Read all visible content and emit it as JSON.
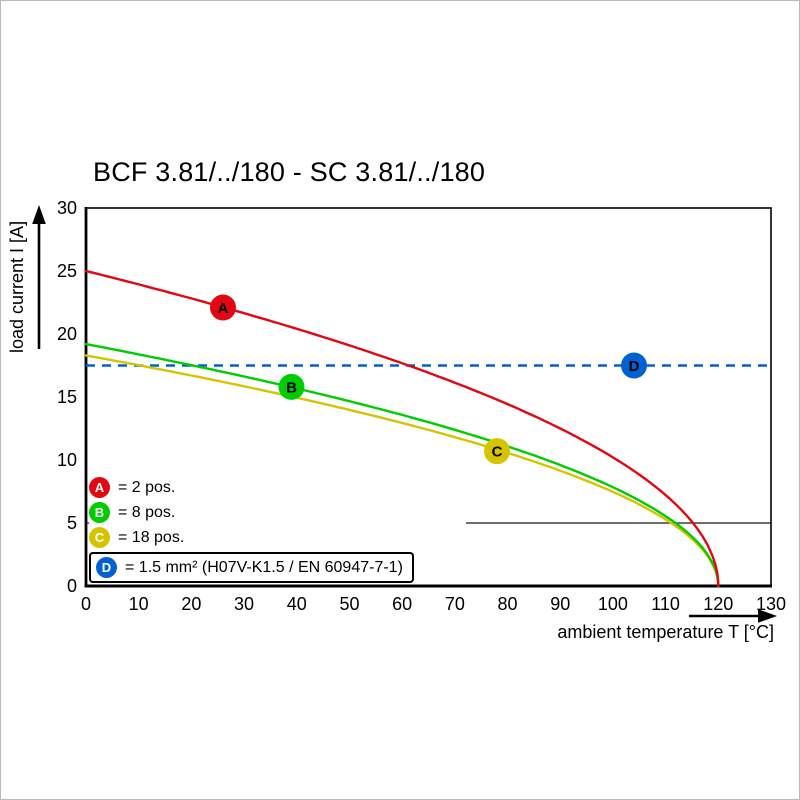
{
  "chart_data": {
    "type": "line",
    "title": "BCF 3.81/../180 - SC 3.81/../180",
    "xlabel": "ambient temperature T [°C]",
    "ylabel": "load current I [A]",
    "xlim": [
      0,
      130
    ],
    "ylim": [
      0,
      30
    ],
    "x_ticks": [
      0,
      10,
      20,
      30,
      40,
      50,
      60,
      70,
      80,
      90,
      100,
      110,
      120,
      130
    ],
    "y_ticks": [
      0,
      5,
      10,
      15,
      20,
      25,
      30
    ],
    "grid": "off",
    "aux_gridline": {
      "y": 5,
      "x_start": 0,
      "x_end": 130,
      "note": "thin dark line at 5 A, left part hidden behind legend box"
    },
    "series": [
      {
        "name": "A",
        "color": "#e30613",
        "model": "I0*sqrt(1-T/T_end)",
        "I0": 25.0,
        "T_end": 120,
        "points": [
          [
            0,
            25.0
          ],
          [
            10,
            23.9
          ],
          [
            20,
            22.8
          ],
          [
            30,
            21.7
          ],
          [
            40,
            20.4
          ],
          [
            50,
            19.1
          ],
          [
            60,
            17.7
          ],
          [
            70,
            16.1
          ],
          [
            80,
            14.4
          ],
          [
            90,
            12.5
          ],
          [
            100,
            10.2
          ],
          [
            110,
            7.2
          ],
          [
            115,
            5.1
          ],
          [
            120,
            0
          ]
        ]
      },
      {
        "name": "B",
        "color": "#00cd00",
        "model": "I0*sqrt(1-T/T_end)",
        "I0": 19.2,
        "T_end": 120,
        "points": [
          [
            0,
            19.2
          ],
          [
            10,
            18.4
          ],
          [
            20,
            17.5
          ],
          [
            30,
            16.6
          ],
          [
            40,
            15.7
          ],
          [
            50,
            14.7
          ],
          [
            60,
            13.6
          ],
          [
            70,
            12.4
          ],
          [
            80,
            11.1
          ],
          [
            90,
            9.6
          ],
          [
            100,
            7.8
          ],
          [
            110,
            5.5
          ],
          [
            115,
            3.9
          ],
          [
            120,
            0
          ]
        ]
      },
      {
        "name": "C",
        "color": "#d5c400",
        "model": "I0*sqrt(1-T/T_end)",
        "I0": 18.3,
        "T_end": 120,
        "points": [
          [
            0,
            18.3
          ],
          [
            10,
            17.5
          ],
          [
            20,
            16.7
          ],
          [
            30,
            15.8
          ],
          [
            40,
            14.9
          ],
          [
            50,
            14.0
          ],
          [
            60,
            12.9
          ],
          [
            70,
            11.8
          ],
          [
            80,
            10.6
          ],
          [
            90,
            9.2
          ],
          [
            100,
            7.5
          ],
          [
            110,
            5.3
          ],
          [
            115,
            3.7
          ],
          [
            120,
            0
          ]
        ]
      },
      {
        "name": "D",
        "color": "#0061d1",
        "type": "hline",
        "value": 17.5,
        "dashed": true,
        "x_start": 0,
        "x_end": 130
      }
    ],
    "markers": [
      {
        "series": "A",
        "letter": "A",
        "T": 26,
        "I": 22.1
      },
      {
        "series": "B",
        "letter": "B",
        "T": 39,
        "I": 15.8
      },
      {
        "series": "C",
        "letter": "C",
        "T": 78,
        "I": 10.7
      },
      {
        "series": "D",
        "letter": "D",
        "T": 104,
        "I": 17.5
      }
    ],
    "legend": {
      "position": "bottom-left-inside",
      "items": [
        {
          "letter": "A",
          "label": "= 2 pos.",
          "boxed": false
        },
        {
          "letter": "B",
          "label": "= 8 pos.",
          "boxed": false
        },
        {
          "letter": "C",
          "label": "= 18 pos.",
          "boxed": false
        },
        {
          "letter": "D",
          "label": "= 1.5 mm² (H07V-K1.5 / EN 60947-7-1)",
          "boxed": true
        }
      ]
    }
  }
}
